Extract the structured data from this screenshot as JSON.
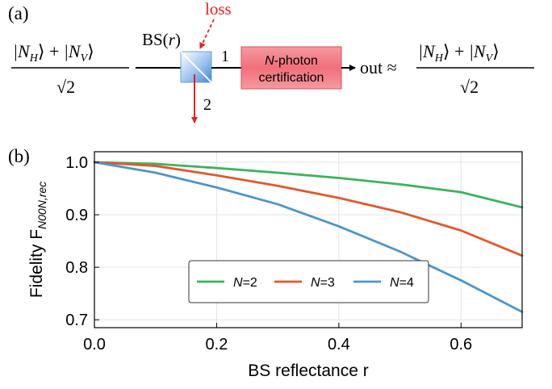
{
  "panel_a": {
    "label": "(a)",
    "input_ket_h": "|N",
    "input_sub_h": "H",
    "input_ket_v": "|N",
    "input_sub_v": "V",
    "sqrt2": "√2",
    "bs_label": "BS(",
    "bs_arg": "r",
    "bs_close": ")",
    "loss_label": "loss",
    "port1": "1",
    "port2": "2",
    "cert_prefix": "N",
    "cert_line1_rest": "-photon",
    "cert_line2": "certification",
    "out_label": "out ≈",
    "colors": {
      "loss": "#e8201e",
      "cert_fill": "#f28b91",
      "cert_edge": "#e64a56",
      "bs_cube": "#4a8fd8"
    }
  },
  "panel_b": {
    "label": "(b)"
  },
  "chart_data": {
    "type": "line",
    "xlabel": "BS reflectance r",
    "ylabel": "Fidelity F",
    "ylabel_sub": "N00N,rec",
    "xlim": [
      0,
      0.7
    ],
    "ylim": [
      0.685,
      1.02
    ],
    "xticks": [
      "0.0",
      "0.2",
      "0.4",
      "0.6"
    ],
    "yticks": [
      "0.7",
      "0.8",
      "0.9",
      "1.0"
    ],
    "grid": true,
    "legend_position": "center",
    "series": [
      {
        "name": "N=2",
        "label_var": "N",
        "label_val": "=2",
        "color": "#3cb35c",
        "N": 2,
        "x": [
          0,
          0.1,
          0.2,
          0.3,
          0.4,
          0.5,
          0.6,
          0.7
        ],
        "values": [
          1.0,
          0.997,
          0.989,
          0.98,
          0.97,
          0.958,
          0.943,
          0.914
        ]
      },
      {
        "name": "N=3",
        "label_var": "N",
        "label_val": "=3",
        "color": "#e2582c",
        "N": 3,
        "x": [
          0,
          0.1,
          0.2,
          0.3,
          0.4,
          0.5,
          0.6,
          0.7
        ],
        "values": [
          1.0,
          0.993,
          0.975,
          0.955,
          0.932,
          0.905,
          0.87,
          0.822
        ]
      },
      {
        "name": "N=4",
        "label_var": "N",
        "label_val": "=4",
        "color": "#4c96c9",
        "N": 4,
        "x": [
          0,
          0.1,
          0.2,
          0.3,
          0.4,
          0.5,
          0.6,
          0.7
        ],
        "values": [
          1.0,
          0.98,
          0.952,
          0.92,
          0.878,
          0.83,
          0.775,
          0.715
        ]
      }
    ]
  }
}
